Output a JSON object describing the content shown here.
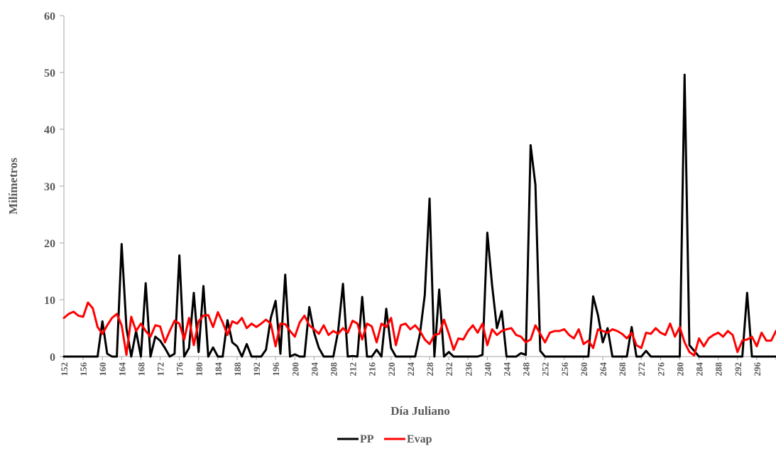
{
  "chart_data": {
    "type": "line",
    "title": "",
    "xlabel": "Día Juliano",
    "ylabel": "Milímetros",
    "xlim": [
      152,
      300
    ],
    "ylim": [
      0,
      60
    ],
    "yticks": [
      0,
      10,
      20,
      30,
      40,
      50,
      60
    ],
    "xtick_step": 4,
    "grid": false,
    "legend_position": "bottom",
    "x_start": 152,
    "series": [
      {
        "name": "PP",
        "color": "#000000",
        "values": [
          0,
          0,
          0,
          0,
          0,
          0,
          0,
          0,
          6.2,
          0.5,
          0,
          0,
          19.8,
          5,
          0,
          4.5,
          0,
          12.9,
          0,
          3.5,
          2.8,
          1.5,
          0,
          0.5,
          17.8,
          0,
          1.5,
          11.2,
          0.8,
          12.4,
          0,
          1.6,
          0,
          0,
          6.4,
          2.5,
          1.8,
          0,
          2.2,
          0,
          0,
          0,
          1.2,
          6.8,
          9.8,
          0.5,
          14.4,
          0,
          0.4,
          0,
          0,
          8.7,
          4.2,
          1.5,
          0,
          0,
          0,
          4.5,
          12.8,
          0,
          0.1,
          0,
          10.5,
          0,
          0,
          1.2,
          0,
          8.4,
          1.5,
          0,
          0,
          0,
          0,
          0,
          4,
          10.8,
          27.8,
          0,
          11.8,
          0,
          0.8,
          0,
          0,
          0,
          0,
          0,
          0,
          0.3,
          21.8,
          12.5,
          5,
          8,
          0,
          0,
          0,
          0.6,
          0.3,
          37.2,
          30.2,
          1,
          0,
          0,
          0,
          0,
          0,
          0,
          0,
          0,
          0,
          0,
          10.6,
          7.3,
          2.5,
          5,
          0,
          0,
          0,
          0,
          5.2,
          0,
          0,
          1,
          0,
          0,
          0,
          0,
          0,
          0,
          0,
          49.6,
          2,
          1,
          0,
          0,
          0,
          0,
          0,
          0,
          0,
          0,
          0,
          0,
          11.2,
          0,
          0,
          0,
          0,
          0,
          0,
          0,
          0,
          0,
          0
        ]
      },
      {
        "name": "Evap",
        "color": "#ff0000",
        "values": [
          6.8,
          7.5,
          7.9,
          7.2,
          7,
          9.5,
          8.5,
          5.2,
          4,
          5.5,
          6.8,
          7.5,
          5.5,
          0.3,
          7,
          4.5,
          5.8,
          4.5,
          3.5,
          5.5,
          5.3,
          2.5,
          4.5,
          6.3,
          5.8,
          3,
          6.8,
          2,
          6.2,
          7.2,
          7.3,
          5.2,
          7.8,
          6,
          3.8,
          6.2,
          5.8,
          6.8,
          5,
          5.8,
          5.2,
          5.8,
          6.5,
          5.8,
          1.8,
          5.8,
          5.7,
          4.5,
          3.5,
          6,
          7.2,
          5.5,
          4.8,
          4,
          5.5,
          3.8,
          4.5,
          4,
          5,
          4.2,
          6.3,
          5.8,
          3,
          5.8,
          5.3,
          2.5,
          5.8,
          5.2,
          6.8,
          2,
          5.5,
          5.8,
          4.8,
          5.5,
          4.5,
          3,
          2.2,
          3.8,
          4,
          6.5,
          4,
          1.2,
          3.2,
          3,
          4.5,
          5.5,
          4.2,
          5.8,
          2,
          4.8,
          3.8,
          4.5,
          4.8,
          5,
          3.8,
          3.5,
          2.5,
          3,
          5.5,
          4,
          2.5,
          4.2,
          4.5,
          4.5,
          4.8,
          3.8,
          3.2,
          4.8,
          2.2,
          2.8,
          1.5,
          4.8,
          4.5,
          4.2,
          4.8,
          4.5,
          4,
          3.2,
          4.2,
          2,
          1.5,
          4.2,
          4,
          5,
          4.2,
          3.8,
          5.8,
          3.5,
          5.2,
          2.5,
          0.8,
          0.2,
          3.2,
          1.8,
          3.2,
          3.8,
          4.2,
          3.5,
          4.5,
          3.8,
          0.8,
          2.8,
          3,
          3.5,
          1.8,
          4.2,
          2.8,
          2.8,
          4.5
        ]
      }
    ]
  }
}
